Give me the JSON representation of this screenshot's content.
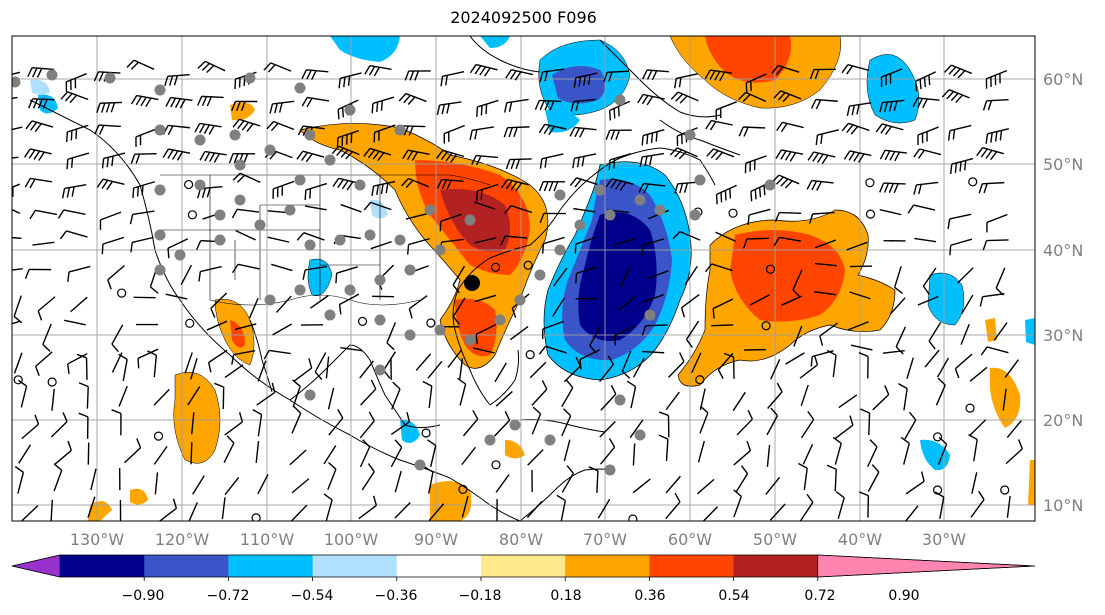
{
  "title": "2024092500 F096",
  "map": {
    "lon_labels": [
      "130°W",
      "120°W",
      "110°W",
      "100°W",
      "90°W",
      "80°W",
      "70°W",
      "60°W",
      "50°W",
      "40°W",
      "30°W"
    ],
    "lat_labels": [
      "60°N",
      "50°N",
      "40°N",
      "30°N",
      "20°N",
      "10°N"
    ],
    "gridline_color": "#a0a0a0"
  },
  "colorbar": {
    "ticks": [
      "−0.90",
      "−0.72",
      "−0.54",
      "−0.36",
      "−0.18",
      "0.18",
      "0.36",
      "0.54",
      "0.72",
      "0.90"
    ],
    "colors": [
      "#9932cc",
      "#00008b",
      "#3a55c8",
      "#00bfff",
      "#b0e0ff",
      "#ffffff",
      "#ffe98a",
      "#ffa500",
      "#ff4500",
      "#b22222",
      "#ff85b0"
    ]
  }
}
